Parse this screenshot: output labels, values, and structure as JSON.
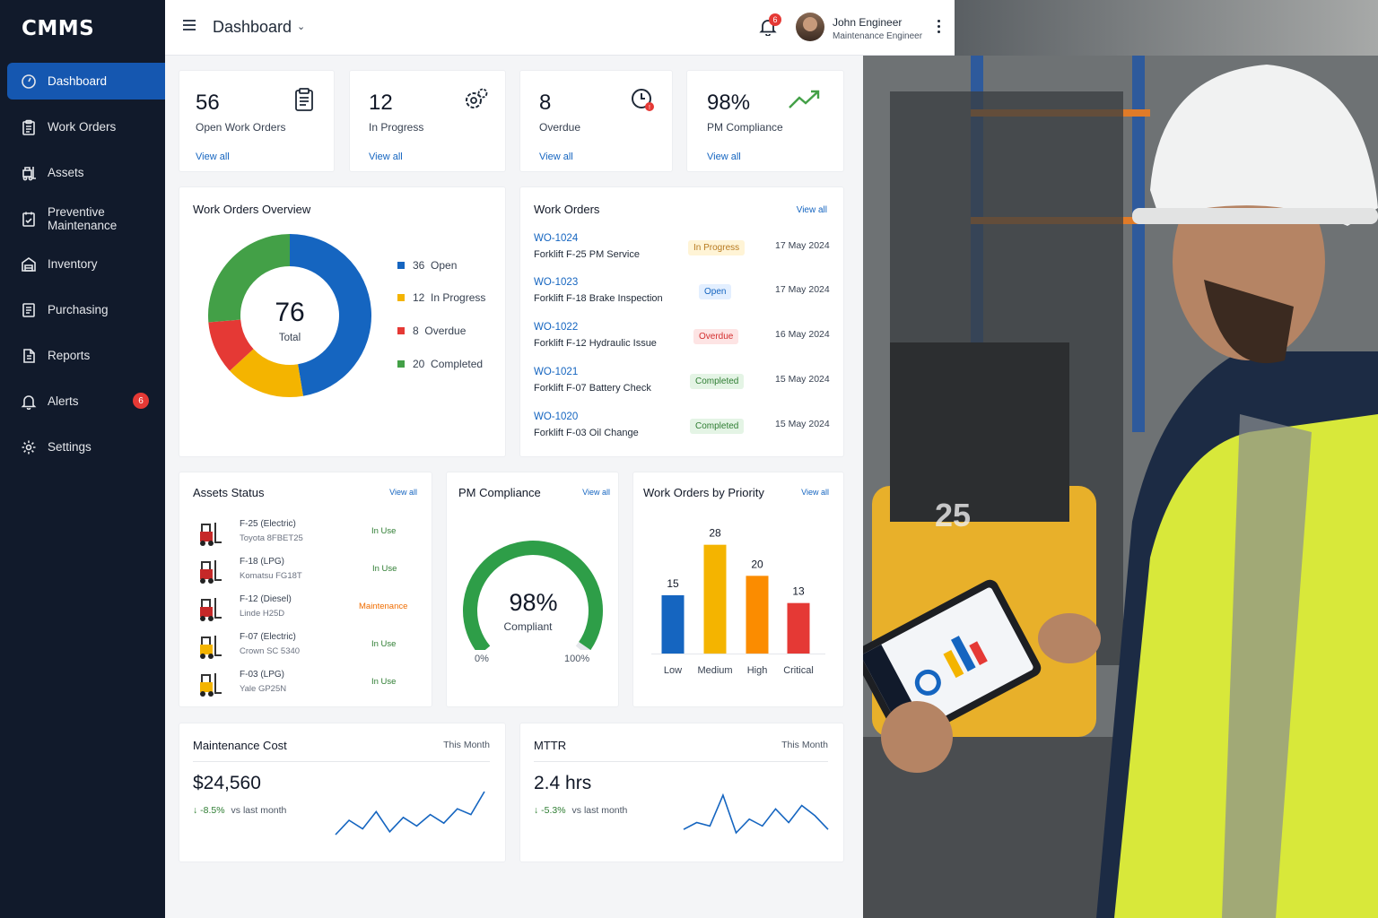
{
  "brand": "CMMS",
  "sidebar": {
    "items": [
      {
        "label": "Dashboard",
        "icon": "dashboard-icon",
        "active": true
      },
      {
        "label": "Work Orders",
        "icon": "clipboard-icon"
      },
      {
        "label": "Assets",
        "icon": "forklift-icon"
      },
      {
        "label": "Preventive Maintenance",
        "icon": "calendar-check-icon"
      },
      {
        "label": "Inventory",
        "icon": "warehouse-icon"
      },
      {
        "label": "Purchasing",
        "icon": "document-icon"
      },
      {
        "label": "Reports",
        "icon": "report-icon"
      },
      {
        "label": "Alerts",
        "icon": "bell-icon",
        "badge": "6"
      },
      {
        "label": "Settings",
        "icon": "gear-icon"
      }
    ]
  },
  "header": {
    "title": "Dashboard",
    "notification_count": "6",
    "user_name": "John Engineer",
    "user_role": "Maintenance Engineer"
  },
  "kpis": [
    {
      "value": "56",
      "label": "Open Work Orders",
      "link": "View all",
      "icon": "clipboard-icon"
    },
    {
      "value": "12",
      "label": "In Progress",
      "link": "View all",
      "icon": "gears-icon"
    },
    {
      "value": "8",
      "label": "Overdue",
      "link": "View all",
      "icon": "clock-alert-icon"
    },
    {
      "value": "98%",
      "label": "PM Compliance",
      "link": "View all",
      "icon": "trend-up-icon"
    }
  ],
  "overview": {
    "title": "Work Orders Overview",
    "total": "76",
    "total_label": "Total",
    "legend": [
      {
        "count": "36",
        "label": "Open",
        "color": "#1565c0"
      },
      {
        "count": "12",
        "label": "In Progress",
        "color": "#f4b400"
      },
      {
        "count": "8",
        "label": "Overdue",
        "color": "#e53935"
      },
      {
        "count": "20",
        "label": "Completed",
        "color": "#43a047"
      }
    ]
  },
  "work_orders": {
    "title": "Work Orders",
    "link": "View all",
    "rows": [
      {
        "id": "WO-1024",
        "desc": "Forklift F-25 PM Service",
        "status": "In Progress",
        "date": "17 May 2024"
      },
      {
        "id": "WO-1023",
        "desc": "Forklift F-18 Brake Inspection",
        "status": "Open",
        "date": "17 May 2024"
      },
      {
        "id": "WO-1022",
        "desc": "Forklift F-12 Hydraulic Issue",
        "status": "Overdue",
        "date": "16 May 2024"
      },
      {
        "id": "WO-1021",
        "desc": "Forklift F-07 Battery Check",
        "status": "Completed",
        "date": "15 May 2024"
      },
      {
        "id": "WO-1020",
        "desc": "Forklift F-03 Oil Change",
        "status": "Completed",
        "date": "15 May 2024"
      }
    ]
  },
  "assets": {
    "title": "Assets Status",
    "link": "View all",
    "rows": [
      {
        "name": "F-25 (Electric)",
        "model": "Toyota 8FBET25",
        "status": "In Use"
      },
      {
        "name": "F-18 (LPG)",
        "model": "Komatsu FG18T",
        "status": "In Use"
      },
      {
        "name": "F-12 (Diesel)",
        "model": "Linde H25D",
        "status": "Maintenance"
      },
      {
        "name": "F-07 (Electric)",
        "model": "Crown SC 5340",
        "status": "In Use"
      },
      {
        "name": "F-03 (LPG)",
        "model": "Yale GP25N",
        "status": "In Use"
      }
    ]
  },
  "pm": {
    "title": "PM Compliance",
    "link": "View all",
    "value": "98%",
    "fraction": 0.98,
    "label": "Compliant",
    "min_label": "0%",
    "max_label": "100%"
  },
  "priority": {
    "title": "Work Orders by Priority",
    "link": "View all"
  },
  "chart_data": {
    "type": "bar",
    "categories": [
      "Low",
      "Medium",
      "High",
      "Critical"
    ],
    "values": [
      15,
      28,
      20,
      13
    ],
    "colors": [
      "#1565c0",
      "#f4b400",
      "#fb8c00",
      "#e53935"
    ],
    "ylim": [
      0,
      30
    ]
  },
  "maintenance_cost": {
    "title": "Maintenance Cost",
    "period": "This Month",
    "value": "$24,560",
    "change": "-8.5%",
    "vs": "vs last month",
    "trend": [
      3,
      8,
      5,
      11,
      4,
      9,
      6,
      10,
      7,
      12,
      10,
      18
    ]
  },
  "mttr": {
    "title": "MTTR",
    "period": "This Month",
    "value": "2.4 hrs",
    "change": "-5.3%",
    "vs": "vs last month",
    "trend": [
      4,
      6,
      5,
      14,
      3,
      7,
      5,
      10,
      6,
      11,
      8,
      4
    ]
  }
}
